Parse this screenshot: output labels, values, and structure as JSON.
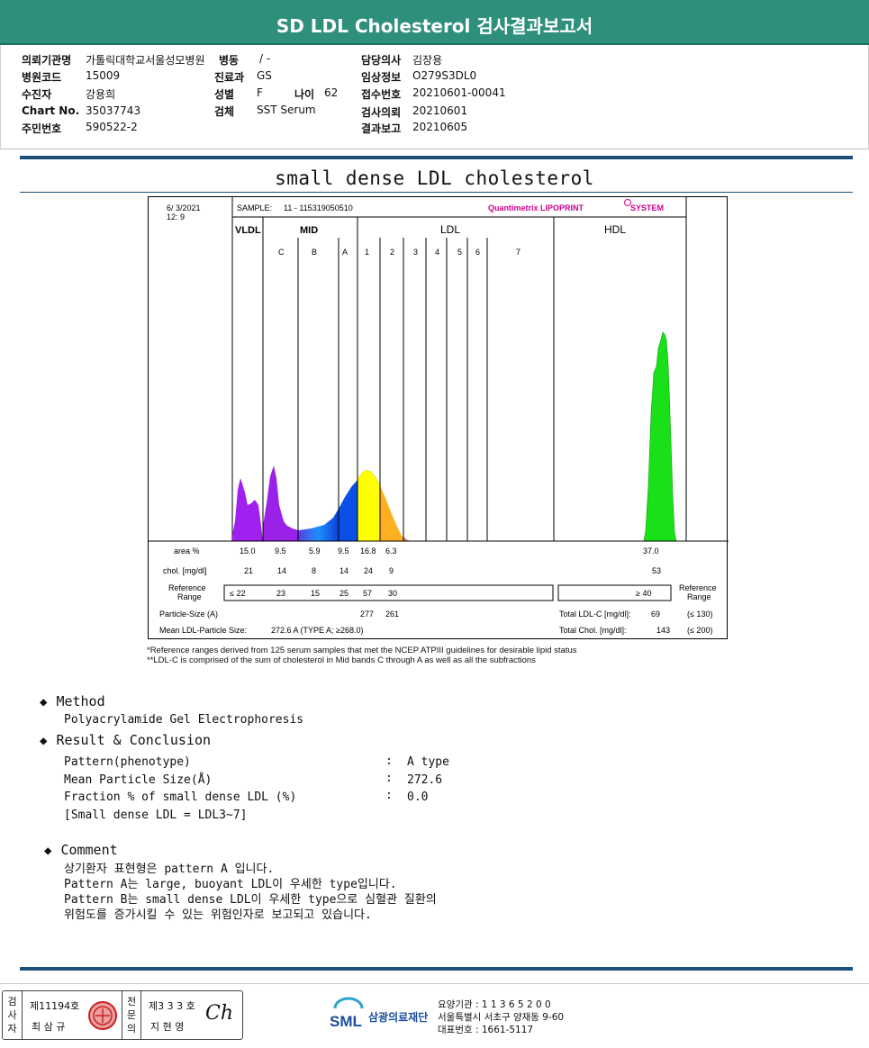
{
  "header": {
    "title": "SD LDL Cholesterol 검사결과보고서",
    "fields_left": [
      {
        "label": "의뢰기관명",
        "value": "가톨릭대학교서울성모병원"
      },
      {
        "label": "병원코드",
        "value": "15009"
      },
      {
        "label": "수진자",
        "value": "강용희"
      },
      {
        "label": "Chart No.",
        "value": "35037743"
      },
      {
        "label": "주민번호",
        "value": "590522-2"
      }
    ],
    "ward": {
      "label": "병동",
      "value": "/ -"
    },
    "dept": {
      "label": "진료과",
      "value": "GS"
    },
    "sex": {
      "label": "성별",
      "value": "F"
    },
    "age": {
      "label": "나이",
      "value": "62"
    },
    "specimen": {
      "label": "검체",
      "value": "SST Serum"
    },
    "fields_right": [
      {
        "label": "담당의사",
        "value": "김장용"
      },
      {
        "label": "임상정보",
        "value": "O279S3DL0"
      },
      {
        "label": "접수번호",
        "value": "20210601-00041"
      },
      {
        "label": "검사의뢰",
        "value": "20210601"
      },
      {
        "label": "결과보고",
        "value": "20210605"
      }
    ]
  },
  "lipoprint": {
    "heading": "small dense LDL cholesterol",
    "date": "6/  3/2021",
    "time": "12:  9",
    "sample_label": "SAMPLE:",
    "sample_value": "11 - 115319050510",
    "brand": "Quantimetrix LIPOPRINT",
    "brand_suffix": "SYSTEM",
    "groups": [
      "VLDL",
      "MID",
      "LDL",
      "HDL"
    ],
    "bands": [
      "C",
      "B",
      "A",
      "1",
      "2",
      "3",
      "4",
      "5",
      "6",
      "7"
    ],
    "rows": {
      "area_label": "area %",
      "area_values": [
        "15.0",
        "9.5",
        "5.9",
        "9.5",
        "16.8",
        "6.3"
      ],
      "area_hdl": "37.0",
      "chol_label": "chol. [mg/dl]",
      "chol_values": [
        "21",
        "14",
        "8",
        "14",
        "24",
        "9"
      ],
      "chol_hdl": "53",
      "ref_label": "Reference Range",
      "ref_values": [
        "≤ 22",
        "23",
        "15",
        "25",
        "57",
        "30"
      ],
      "ref_hdl": "≥  40",
      "ref_label_right": "Reference Range",
      "particle_label": "Particle-Size (A)",
      "particle_values": [
        "277",
        "261"
      ],
      "mean_label": "Mean LDL-Particle Size:",
      "mean_value": "272.6  A   (TYPE A; ≥268.0)",
      "total_ldl_label": "Total LDL-C  [mg/dl]:",
      "total_ldl_value": "69",
      "total_ldl_ref": "(≤ 130)",
      "total_chol_label": "Total Chol.  [mg/dl]:",
      "total_chol_value": "143",
      "total_chol_ref": "(≤ 200)"
    },
    "footnote_1": "*Reference ranges derived from 125 serum samples that met the NCEP ATPIII guidelines for desirable lipid status",
    "footnote_2": "**LDL-C is comprised of the sum of cholesterol in Mid bands C through A as well as all the subfractions"
  },
  "method": {
    "heading": "Method",
    "text": "Polyacrylamide Gel Electrophoresis"
  },
  "result": {
    "heading": "Result & Conclusion",
    "rows": [
      {
        "label": "Pattern(phenotype)",
        "value": "A type"
      },
      {
        "label": "Mean Particle Size(Å)",
        "value": "272.6"
      },
      {
        "label": "Fraction % of small dense LDL (%)",
        "value": "0.0"
      }
    ],
    "note": "[Small dense LDL = LDL3~7]",
    "colon": ":"
  },
  "comment": {
    "heading": "Comment",
    "lines": [
      "상기환자 표현형은 pattern A 입니다.",
      "Pattern A는 large, buoyant LDL이 우세한 type입니다.",
      "Pattern B는 small dense LDL이 우세한 type으로 심혈관 질환의",
      "위험도를 증가시킬 수 있는 위험인자로 보고되고 있습니다."
    ]
  },
  "footer": {
    "inspector_label": [
      "검",
      "사",
      "자"
    ],
    "inspector_no": "제11194호",
    "inspector_name": "최 삼 규",
    "specialist_label": [
      "전",
      "문",
      "의"
    ],
    "specialist_no": "제3 3 3 호",
    "specialist_name": "지 현 영",
    "signature": "Ch",
    "org_short": "SML",
    "org_name": "삼광의료재단",
    "code_line": "요양기관 : 1 1 3 6 5 2 0 0",
    "address": "서울특별시 서초구 양재동 9-60",
    "phone": "대표번호 : 1661-5117"
  },
  "colors": {
    "header_bg": "#2e8f7c",
    "rule": "#1c4f7a",
    "vldl_peak": "#a020f0",
    "mid_c": "#8a2be2",
    "mid_b": "#1e90ff",
    "mid_a": "#0050e0",
    "ldl1": "#ffff00",
    "ldl2": "#ffb020",
    "hdl": "#1ae01a",
    "brand": "#d0008f"
  }
}
